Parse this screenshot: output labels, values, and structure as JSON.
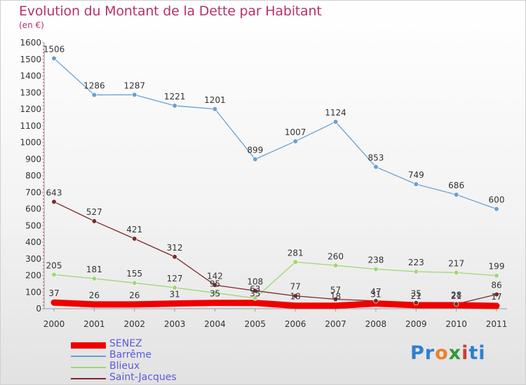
{
  "header": {
    "title": "Evolution du Montant de la Dette par Habitant",
    "subtitle": "(en €)"
  },
  "brand": {
    "logo_text": "Proxiti"
  },
  "colors": {
    "title": "#b5326e",
    "legend_text": "#5a5ae0",
    "axis": "#999999"
  },
  "chart_data": {
    "type": "line",
    "title": "Evolution du Montant de la Dette par Habitant",
    "subtitle": "(en €)",
    "xlabel": "",
    "ylabel": "",
    "x": [
      "2000",
      "2001",
      "2002",
      "2003",
      "2004",
      "2005",
      "2006",
      "2007",
      "2008",
      "2009",
      "2010",
      "2011"
    ],
    "ylim": [
      0,
      1600
    ],
    "yticks": [
      "0",
      "100",
      "200",
      "300",
      "400",
      "500",
      "600",
      "700",
      "800",
      "900",
      "1000",
      "1100",
      "1200",
      "1300",
      "1400",
      "1500",
      "1600"
    ],
    "grid": false,
    "legend_position": "bottom-left",
    "series": [
      {
        "name": "SENEZ",
        "color": "#ee0000",
        "values": [
          37,
          26,
          26,
          31,
          35,
          35,
          18,
          18,
          31,
          21,
          21,
          17
        ]
      },
      {
        "name": "Barrême",
        "color": "#6aa0d0",
        "values": [
          1506,
          1286,
          1287,
          1221,
          1201,
          899,
          1007,
          1124,
          853,
          749,
          686,
          600
        ]
      },
      {
        "name": "Blieux",
        "color": "#9cd870",
        "values": [
          205,
          181,
          155,
          127,
          95,
          63,
          281,
          260,
          238,
          223,
          217,
          199
        ]
      },
      {
        "name": "Saint-Jacques",
        "color": "#7a2a2a",
        "values": [
          643,
          527,
          421,
          312,
          142,
          108,
          77,
          57,
          47,
          35,
          28,
          86
        ]
      }
    ]
  }
}
